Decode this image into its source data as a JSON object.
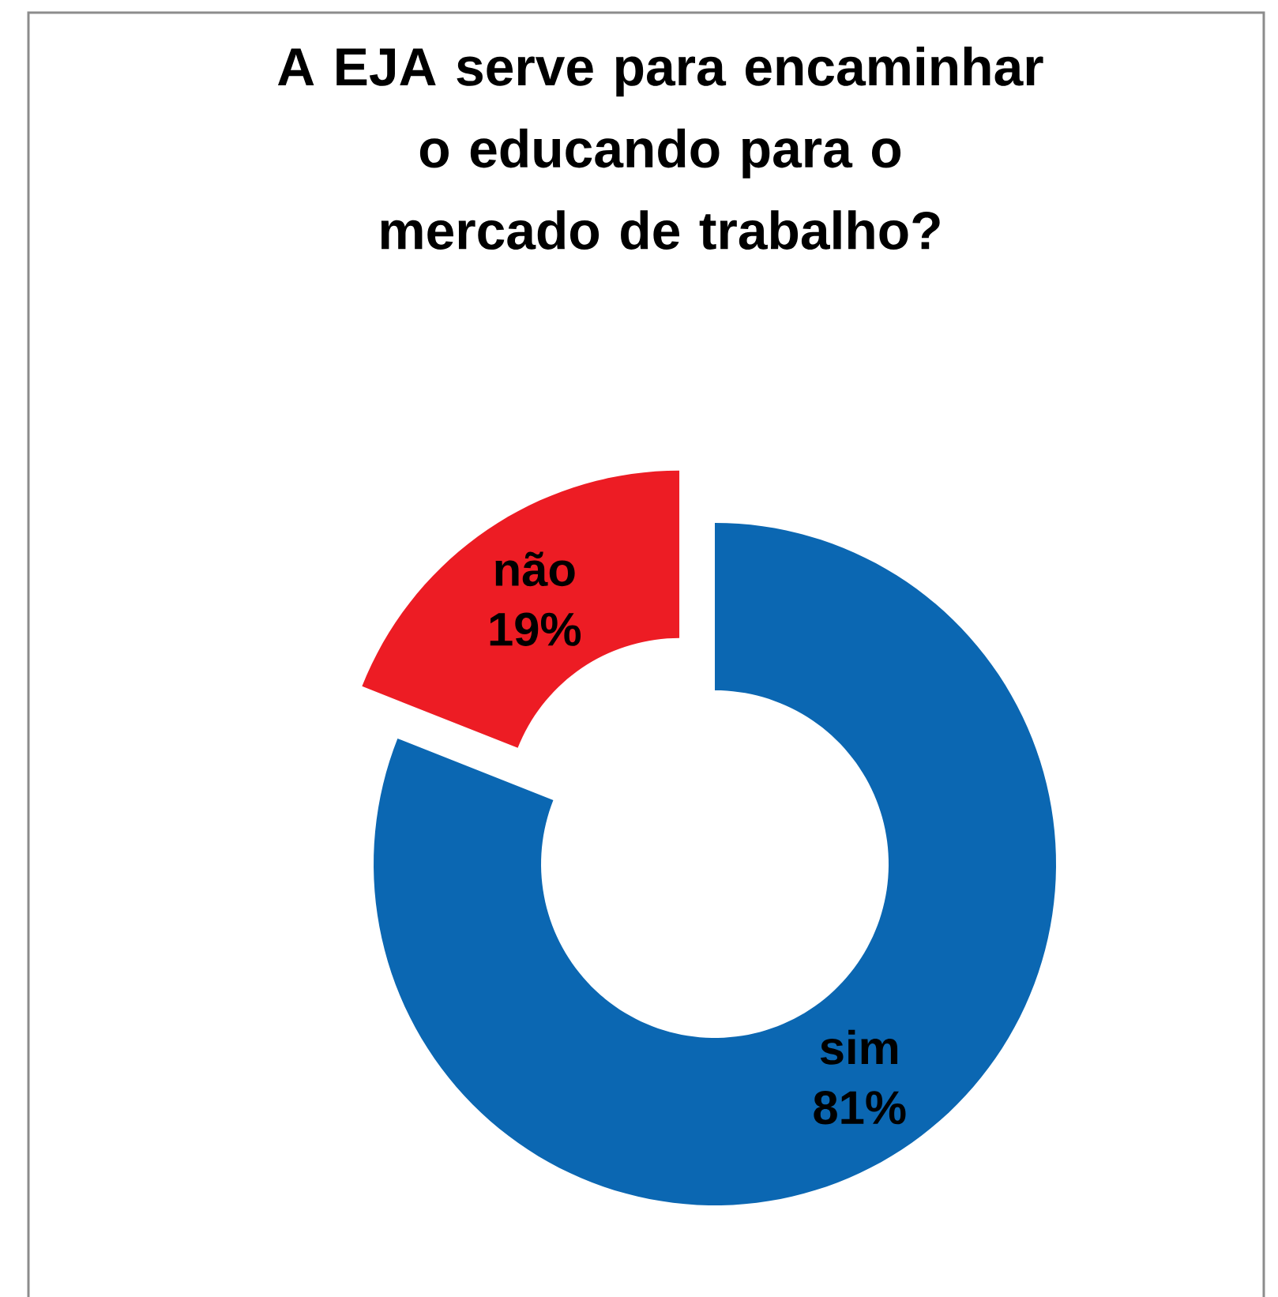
{
  "chart_data": {
    "type": "donut",
    "title": "A EJA serve para encaminhar o educando para o mercado de trabalho?",
    "categories": [
      "sim",
      "não"
    ],
    "values": [
      81,
      19
    ],
    "colors": [
      "#0b67b2",
      "#ed1c24"
    ],
    "value_labels": [
      "81%",
      "19%"
    ],
    "legend": false
  }
}
